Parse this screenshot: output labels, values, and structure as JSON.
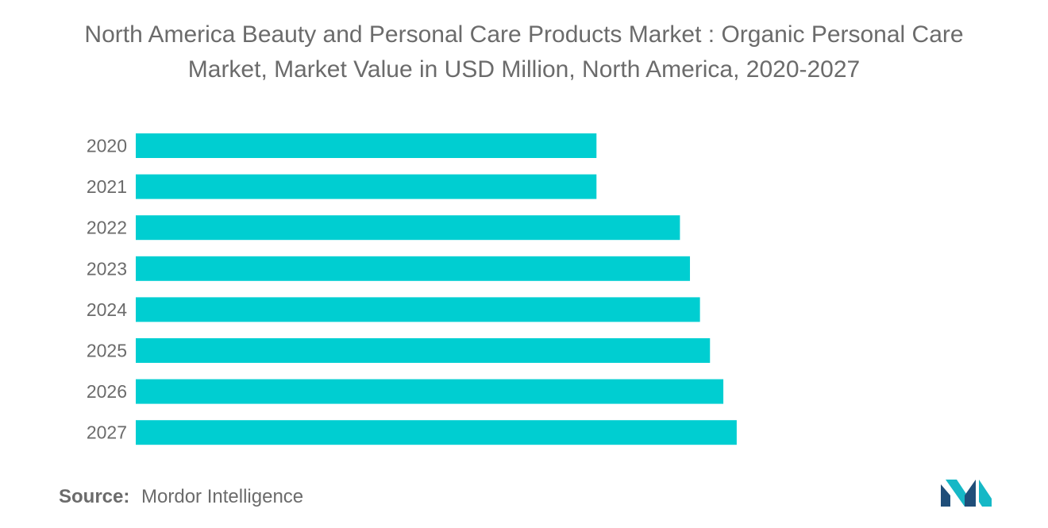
{
  "title": {
    "line1": "North America Beauty and Personal Care Products Market : Organic Personal Care",
    "line2": "Market, Market Value in USD Million, North America, 2020-2027"
  },
  "source": {
    "label": "Source:",
    "text": "Mordor Intelligence"
  },
  "colors": {
    "bar": "#00ced1",
    "text": "#6b6b6b",
    "logo_dark": "#1f4e79",
    "logo_teal": "#16b8c6"
  },
  "logo_icon": "mordor-intelligence-logo-icon",
  "chart_data": {
    "type": "bar",
    "orientation": "horizontal",
    "categories": [
      "2020",
      "2021",
      "2022",
      "2023",
      "2024",
      "2025",
      "2026",
      "2027"
    ],
    "values": [
      69,
      69,
      81.5,
      83,
      84.5,
      86,
      88,
      90
    ],
    "xlim": [
      0,
      100
    ],
    "grid": false,
    "xlabel": "",
    "ylabel": "",
    "value_axis_shown": false
  }
}
